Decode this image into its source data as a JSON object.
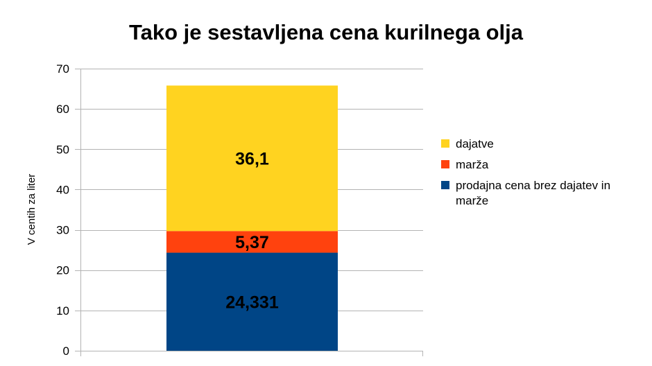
{
  "chart_data": {
    "type": "bar",
    "stacked": true,
    "title": "Tako je sestavljena cena kurilnega olja",
    "xlabel": "",
    "ylabel": "V centih za liter",
    "categories": [
      ""
    ],
    "ylim": [
      0,
      70
    ],
    "yticks": [
      0,
      10,
      20,
      30,
      40,
      50,
      60,
      70
    ],
    "ytick_labels": [
      "0",
      "10",
      "20",
      "30",
      "40",
      "50",
      "60",
      "70"
    ],
    "grid": true,
    "legend_position": "right",
    "series": [
      {
        "name": "prodajna cena brez dajatev in marže",
        "legend_lines": [
          "prodajna cena brez dajatev in",
          "marže"
        ],
        "values": [
          24.331
        ],
        "label": "24,331",
        "color": "#004586"
      },
      {
        "name": "marža",
        "legend_lines": [
          "marža"
        ],
        "values": [
          5.37
        ],
        "label": "5,37",
        "color": "#ff420e"
      },
      {
        "name": "dajatve",
        "legend_lines": [
          "dajatve"
        ],
        "values": [
          36.1
        ],
        "label": "36,1",
        "color": "#ffd320"
      }
    ],
    "legend_order": [
      2,
      1,
      0
    ],
    "gridline_color": "#b3b3b3",
    "axis_color": "#b3b3b3"
  }
}
